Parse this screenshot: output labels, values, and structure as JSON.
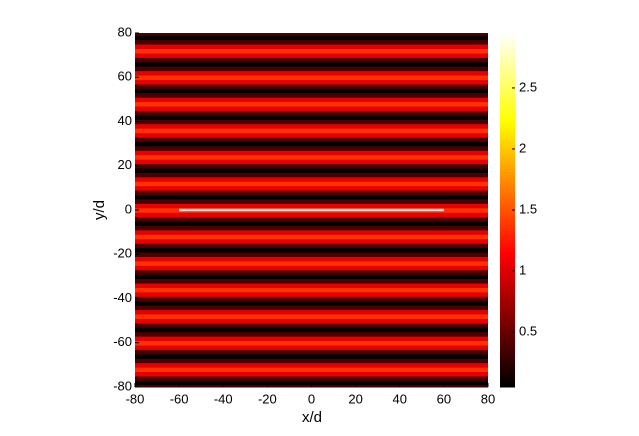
{
  "chart_data": {
    "type": "heatmap",
    "xlabel": "x/d",
    "ylabel": "y/d",
    "xlim": [
      -80,
      80
    ],
    "ylim": [
      -80,
      80
    ],
    "xticks": [
      -80,
      -60,
      -40,
      -20,
      0,
      20,
      40,
      60,
      80
    ],
    "yticks": [
      -80,
      -60,
      -40,
      -20,
      0,
      20,
      40,
      60,
      80
    ],
    "y_step": 2,
    "y": [
      -80,
      -78,
      -76,
      -74,
      -72,
      -70,
      -68,
      -66,
      -64,
      -62,
      -60,
      -58,
      -56,
      -54,
      -52,
      -50,
      -48,
      -46,
      -44,
      -42,
      -40,
      -38,
      -36,
      -34,
      -32,
      -30,
      -28,
      -26,
      -24,
      -22,
      -20,
      -18,
      -16,
      -14,
      -12,
      -10,
      -8,
      -6,
      -4,
      -2,
      0,
      2,
      4,
      6,
      8,
      10,
      12,
      14,
      16,
      18,
      20,
      22,
      24,
      26,
      28,
      30,
      32,
      34,
      36,
      38,
      40,
      42,
      44,
      46,
      48,
      50,
      52,
      54,
      56,
      58,
      60,
      62,
      64,
      66,
      68,
      70,
      72,
      74,
      76,
      78,
      80
    ],
    "values": [
      0.38,
      0.05,
      0.38,
      1.03,
      1.35,
      1.03,
      0.38,
      0.05,
      0.38,
      1.03,
      1.35,
      1.03,
      0.38,
      0.05,
      0.38,
      1.03,
      1.35,
      1.03,
      0.38,
      0.05,
      0.38,
      1.03,
      1.35,
      1.03,
      0.38,
      0.05,
      0.38,
      1.03,
      1.35,
      1.03,
      0.38,
      0.05,
      0.38,
      1.03,
      1.35,
      1.03,
      0.38,
      0.05,
      0.38,
      1.03,
      1.35,
      1.03,
      0.38,
      0.05,
      0.38,
      1.03,
      1.35,
      1.03,
      0.38,
      0.05,
      0.38,
      1.03,
      1.35,
      1.03,
      0.38,
      0.05,
      0.38,
      1.03,
      1.35,
      1.03,
      0.38,
      0.05,
      0.38,
      1.03,
      1.35,
      1.03,
      0.38,
      0.05,
      0.38,
      1.03,
      1.35,
      1.03,
      0.38,
      0.05,
      0.38,
      1.03,
      1.35,
      1.03,
      0.38,
      0.05,
      0.38
    ],
    "colormap": "hot",
    "clim": [
      0.05,
      2.95
    ],
    "cticks": [
      0.5,
      1,
      1.5,
      2,
      2.5
    ],
    "source_line": {
      "x": [
        -60,
        60
      ],
      "y": [
        0,
        0
      ],
      "color": "#e0e0e0"
    }
  }
}
